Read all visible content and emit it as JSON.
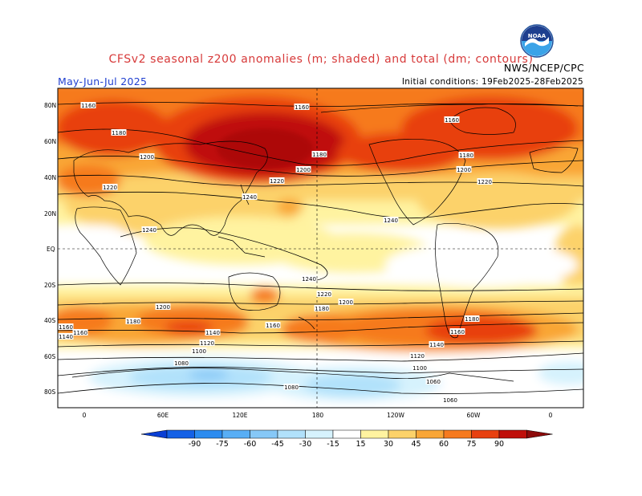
{
  "header": {
    "title": "CFSv2 seasonal z200 anomalies (m; shaded) and total (dm; contours)",
    "agency": "NWS/NCEP/CPC",
    "season": "May-Jun-Jul 2025",
    "initial_conditions": "Initial conditions: 19Feb2025-28Feb2025",
    "logo_text": "NOAA",
    "logo_icon": "noaa-logo-icon"
  },
  "map": {
    "lat_labels": [
      "80N",
      "60N",
      "40N",
      "20N",
      "EQ",
      "20S",
      "40S",
      "60S",
      "80S"
    ],
    "lon_labels": [
      "0",
      "60E",
      "120E",
      "180",
      "120W",
      "60W",
      "0"
    ],
    "contour_labels": [
      "1160",
      "1160",
      "1180",
      "1200",
      "1180",
      "1160",
      "1220",
      "1240",
      "1200",
      "1220",
      "1240",
      "1160",
      "1180",
      "1200",
      "1220",
      "1240",
      "1240",
      "1220",
      "1200",
      "1200",
      "1180",
      "1180",
      "1160",
      "1140",
      "1140",
      "1160",
      "1120",
      "1100",
      "1080",
      "1060",
      "1080",
      "1140",
      "1180",
      "1120",
      "1100",
      "1060",
      "1160"
    ],
    "colors": {
      "land_outline": "#000000",
      "neg_90": "#1461e6",
      "neg_75": "#2b8cf0",
      "neg_60": "#58aef5",
      "neg_45": "#86c8f7",
      "neg_30": "#b1e1fb",
      "neg_15": "#d6f2fd",
      "pos_15": "#fff3a0",
      "pos_30": "#fcd26a",
      "pos_45": "#f9a636",
      "pos_60": "#f67a1e",
      "pos_75": "#e8400f",
      "pos_90": "#bf0f0a"
    }
  },
  "colorbar": {
    "labels": [
      "-90",
      "-75",
      "-60",
      "-45",
      "-30",
      "-15",
      "15",
      "30",
      "45",
      "60",
      "75",
      "90"
    ],
    "colors": [
      "#0a3fd4",
      "#1461e6",
      "#2b8cf0",
      "#58aef5",
      "#86c8f7",
      "#b1e1fb",
      "#d6f2fd",
      "#ffffff",
      "#fff3a0",
      "#fcd26a",
      "#f9a636",
      "#f67a1e",
      "#e8400f",
      "#bf0f0a",
      "#8c0a0a"
    ]
  }
}
